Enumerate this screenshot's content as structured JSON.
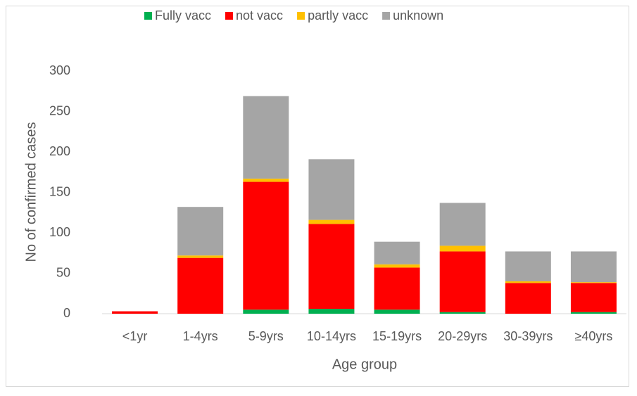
{
  "chart_data": {
    "type": "stacked_bar",
    "x_label": "Age group",
    "y_label": "No of confirmed cases",
    "categories": [
      "<1yr",
      "1-4yrs",
      "5-9yrs",
      "10-14yrs",
      "15-19yrs",
      "20-29yrs",
      "30-39yrs",
      "≥40yrs"
    ],
    "series": [
      {
        "name": "Fully vacc",
        "color": "#00b050",
        "values": [
          0,
          0,
          5,
          6,
          5,
          2,
          0,
          2
        ]
      },
      {
        "name": "not vacc",
        "color": "#ff0000",
        "values": [
          3,
          69,
          158,
          105,
          52,
          75,
          38,
          36
        ]
      },
      {
        "name": "partly vacc",
        "color": "#ffc000",
        "values": [
          0,
          3,
          4,
          5,
          4,
          7,
          2,
          1
        ]
      },
      {
        "name": "unknown",
        "color": "#a5a5a5",
        "values": [
          0,
          60,
          102,
          75,
          28,
          53,
          37,
          38
        ]
      }
    ],
    "ylim": [
      0,
      300
    ],
    "yticks": [
      0,
      50,
      100,
      150,
      200,
      250,
      300
    ],
    "legend": "top",
    "grid": false
  }
}
